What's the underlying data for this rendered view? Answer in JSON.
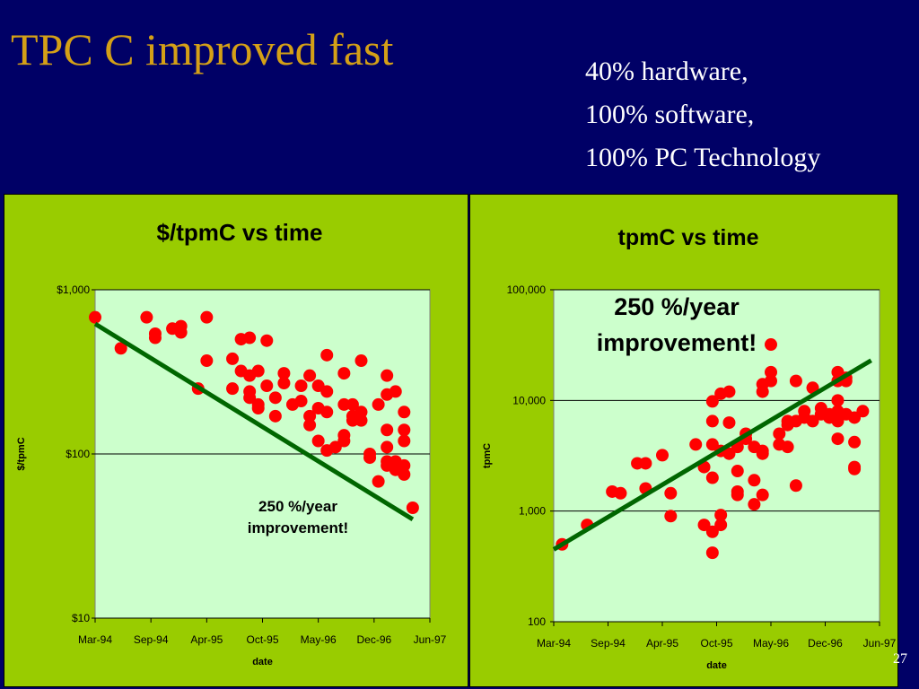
{
  "slide": {
    "title": "TPC C improved fast",
    "breakdown": [
      "40% hardware,",
      "100% software,",
      "100%  PC Technology"
    ],
    "page_number": "27"
  },
  "chart_data": [
    {
      "type": "scatter",
      "title": "$/tpmC vs time",
      "xlabel": "date",
      "ylabel": "$/tpmC",
      "y_scale": "log",
      "ylim": [
        10,
        1000
      ],
      "y_ticks": [
        {
          "value": 10,
          "label": "$10"
        },
        {
          "value": 100,
          "label": "$100"
        },
        {
          "value": 1000,
          "label": "$1,000"
        }
      ],
      "xlim": [
        "1994-03",
        "1997-06"
      ],
      "x_ticks": [
        "Mar-94",
        "Sep-94",
        "Apr-95",
        "Oct-95",
        "May-96",
        "Dec-96",
        "Jun-97"
      ],
      "grid": true,
      "annotation": [
        "250 %/year",
        "improvement!"
      ],
      "colors": {
        "points": "#ff0000",
        "trend": "#006600",
        "plot_bg": "#ccffcc"
      },
      "trendline": [
        {
          "x": "1994-03",
          "y": 620
        },
        {
          "x": "1997-04",
          "y": 40
        }
      ],
      "points": [
        {
          "x": "1994-03",
          "y": 680
        },
        {
          "x": "1994-06",
          "y": 440
        },
        {
          "x": "1994-09",
          "y": 680
        },
        {
          "x": "1994-10",
          "y": 510
        },
        {
          "x": "1994-10",
          "y": 540
        },
        {
          "x": "1994-12",
          "y": 580
        },
        {
          "x": "1995-01",
          "y": 600
        },
        {
          "x": "1995-01",
          "y": 550
        },
        {
          "x": "1995-03",
          "y": 250
        },
        {
          "x": "1995-04",
          "y": 680
        },
        {
          "x": "1995-04",
          "y": 370
        },
        {
          "x": "1995-07",
          "y": 380
        },
        {
          "x": "1995-07",
          "y": 250
        },
        {
          "x": "1995-08",
          "y": 320
        },
        {
          "x": "1995-08",
          "y": 500
        },
        {
          "x": "1995-09",
          "y": 300
        },
        {
          "x": "1995-09",
          "y": 510
        },
        {
          "x": "1995-09",
          "y": 240
        },
        {
          "x": "1995-09",
          "y": 220
        },
        {
          "x": "1995-10",
          "y": 190
        },
        {
          "x": "1995-10",
          "y": 320
        },
        {
          "x": "1995-10",
          "y": 200
        },
        {
          "x": "1995-11",
          "y": 490
        },
        {
          "x": "1995-11",
          "y": 260
        },
        {
          "x": "1995-12",
          "y": 220
        },
        {
          "x": "1995-12",
          "y": 170
        },
        {
          "x": "1996-01",
          "y": 310
        },
        {
          "x": "1996-01",
          "y": 270
        },
        {
          "x": "1996-02",
          "y": 200
        },
        {
          "x": "1996-03",
          "y": 260
        },
        {
          "x": "1996-03",
          "y": 210
        },
        {
          "x": "1996-04",
          "y": 150
        },
        {
          "x": "1996-04",
          "y": 170
        },
        {
          "x": "1996-04",
          "y": 300
        },
        {
          "x": "1996-05",
          "y": 190
        },
        {
          "x": "1996-05",
          "y": 120
        },
        {
          "x": "1996-05",
          "y": 260
        },
        {
          "x": "1996-06",
          "y": 400
        },
        {
          "x": "1996-06",
          "y": 240
        },
        {
          "x": "1996-06",
          "y": 180
        },
        {
          "x": "1996-06",
          "y": 105
        },
        {
          "x": "1996-07",
          "y": 110
        },
        {
          "x": "1996-08",
          "y": 130
        },
        {
          "x": "1996-08",
          "y": 120
        },
        {
          "x": "1996-08",
          "y": 310
        },
        {
          "x": "1996-08",
          "y": 200
        },
        {
          "x": "1996-09",
          "y": 160
        },
        {
          "x": "1996-09",
          "y": 170
        },
        {
          "x": "1996-09",
          "y": 200
        },
        {
          "x": "1996-10",
          "y": 370
        },
        {
          "x": "1996-10",
          "y": 160
        },
        {
          "x": "1996-10",
          "y": 180
        },
        {
          "x": "1996-11",
          "y": 100
        },
        {
          "x": "1996-11",
          "y": 95
        },
        {
          "x": "1996-12",
          "y": 200
        },
        {
          "x": "1996-12",
          "y": 68
        },
        {
          "x": "1997-01",
          "y": 230
        },
        {
          "x": "1997-01",
          "y": 300
        },
        {
          "x": "1997-01",
          "y": 140
        },
        {
          "x": "1997-01",
          "y": 110
        },
        {
          "x": "1997-01",
          "y": 90
        },
        {
          "x": "1997-01",
          "y": 85
        },
        {
          "x": "1997-02",
          "y": 240
        },
        {
          "x": "1997-02",
          "y": 80
        },
        {
          "x": "1997-02",
          "y": 90
        },
        {
          "x": "1997-03",
          "y": 140
        },
        {
          "x": "1997-03",
          "y": 120
        },
        {
          "x": "1997-03",
          "y": 180
        },
        {
          "x": "1997-03",
          "y": 75
        },
        {
          "x": "1997-03",
          "y": 85
        },
        {
          "x": "1997-04",
          "y": 47
        }
      ]
    },
    {
      "type": "scatter",
      "title": "tpmC vs time",
      "xlabel": "date",
      "ylabel": "tpmC",
      "y_scale": "log",
      "ylim": [
        100,
        100000
      ],
      "y_ticks": [
        {
          "value": 100,
          "label": "100"
        },
        {
          "value": 1000,
          "label": "1,000"
        },
        {
          "value": 10000,
          "label": "10,000"
        },
        {
          "value": 100000,
          "label": "100,000"
        }
      ],
      "xlim": [
        "1994-03",
        "1997-06"
      ],
      "x_ticks": [
        "Mar-94",
        "Sep-94",
        "Apr-95",
        "Oct-95",
        "May-96",
        "Dec-96",
        "Jun-97"
      ],
      "grid": true,
      "annotation": [
        "250 %/year",
        "improvement!"
      ],
      "colors": {
        "points": "#ff0000",
        "trend": "#006600",
        "plot_bg": "#ccffcc"
      },
      "trendline": [
        {
          "x": "1994-03",
          "y": 450
        },
        {
          "x": "1997-05",
          "y": 23000
        }
      ],
      "points": [
        {
          "x": "1994-04",
          "y": 500
        },
        {
          "x": "1994-07",
          "y": 750
        },
        {
          "x": "1994-10",
          "y": 1500
        },
        {
          "x": "1994-11",
          "y": 1450
        },
        {
          "x": "1995-01",
          "y": 2700
        },
        {
          "x": "1995-02",
          "y": 2700
        },
        {
          "x": "1995-02",
          "y": 1600
        },
        {
          "x": "1995-04",
          "y": 3200
        },
        {
          "x": "1995-05",
          "y": 1450
        },
        {
          "x": "1995-05",
          "y": 900
        },
        {
          "x": "1995-08",
          "y": 4000
        },
        {
          "x": "1995-09",
          "y": 2500
        },
        {
          "x": "1995-09",
          "y": 750
        },
        {
          "x": "1995-10",
          "y": 9800
        },
        {
          "x": "1995-10",
          "y": 650
        },
        {
          "x": "1995-10",
          "y": 420
        },
        {
          "x": "1995-10",
          "y": 6500
        },
        {
          "x": "1995-10",
          "y": 4000
        },
        {
          "x": "1995-10",
          "y": 2000
        },
        {
          "x": "1995-11",
          "y": 920
        },
        {
          "x": "1995-11",
          "y": 750
        },
        {
          "x": "1995-11",
          "y": 11500
        },
        {
          "x": "1995-11",
          "y": 3500
        },
        {
          "x": "1995-12",
          "y": 12000
        },
        {
          "x": "1995-12",
          "y": 6300
        },
        {
          "x": "1995-12",
          "y": 3300
        },
        {
          "x": "1996-01",
          "y": 2300
        },
        {
          "x": "1996-01",
          "y": 1400
        },
        {
          "x": "1996-01",
          "y": 1500
        },
        {
          "x": "1996-01",
          "y": 3800
        },
        {
          "x": "1996-02",
          "y": 5000
        },
        {
          "x": "1996-02",
          "y": 4500
        },
        {
          "x": "1996-03",
          "y": 1150
        },
        {
          "x": "1996-03",
          "y": 1900
        },
        {
          "x": "1996-03",
          "y": 3800
        },
        {
          "x": "1996-04",
          "y": 3300
        },
        {
          "x": "1996-04",
          "y": 3500
        },
        {
          "x": "1996-04",
          "y": 14000
        },
        {
          "x": "1996-04",
          "y": 12000
        },
        {
          "x": "1996-04",
          "y": 1400
        },
        {
          "x": "1996-05",
          "y": 18000
        },
        {
          "x": "1996-05",
          "y": 15000
        },
        {
          "x": "1996-05",
          "y": 32000
        },
        {
          "x": "1996-06",
          "y": 4000
        },
        {
          "x": "1996-06",
          "y": 5000
        },
        {
          "x": "1996-07",
          "y": 6000
        },
        {
          "x": "1996-07",
          "y": 6500
        },
        {
          "x": "1996-07",
          "y": 3800
        },
        {
          "x": "1996-08",
          "y": 15000
        },
        {
          "x": "1996-08",
          "y": 1700
        },
        {
          "x": "1996-08",
          "y": 6500
        },
        {
          "x": "1996-09",
          "y": 8000
        },
        {
          "x": "1996-09",
          "y": 7000
        },
        {
          "x": "1996-10",
          "y": 13000
        },
        {
          "x": "1996-10",
          "y": 6500
        },
        {
          "x": "1996-11",
          "y": 8500
        },
        {
          "x": "1996-11",
          "y": 7500
        },
        {
          "x": "1996-12",
          "y": 7000
        },
        {
          "x": "1996-12",
          "y": 7500
        },
        {
          "x": "1997-01",
          "y": 18000
        },
        {
          "x": "1997-01",
          "y": 15000
        },
        {
          "x": "1997-01",
          "y": 10000
        },
        {
          "x": "1997-01",
          "y": 8000
        },
        {
          "x": "1997-01",
          "y": 7000
        },
        {
          "x": "1997-01",
          "y": 6500
        },
        {
          "x": "1997-01",
          "y": 4500
        },
        {
          "x": "1997-02",
          "y": 15000
        },
        {
          "x": "1997-02",
          "y": 16000
        },
        {
          "x": "1997-02",
          "y": 7500
        },
        {
          "x": "1997-03",
          "y": 7000
        },
        {
          "x": "1997-03",
          "y": 4200
        },
        {
          "x": "1997-03",
          "y": 2500
        },
        {
          "x": "1997-03",
          "y": 2400
        },
        {
          "x": "1997-04",
          "y": 8000
        }
      ]
    }
  ]
}
